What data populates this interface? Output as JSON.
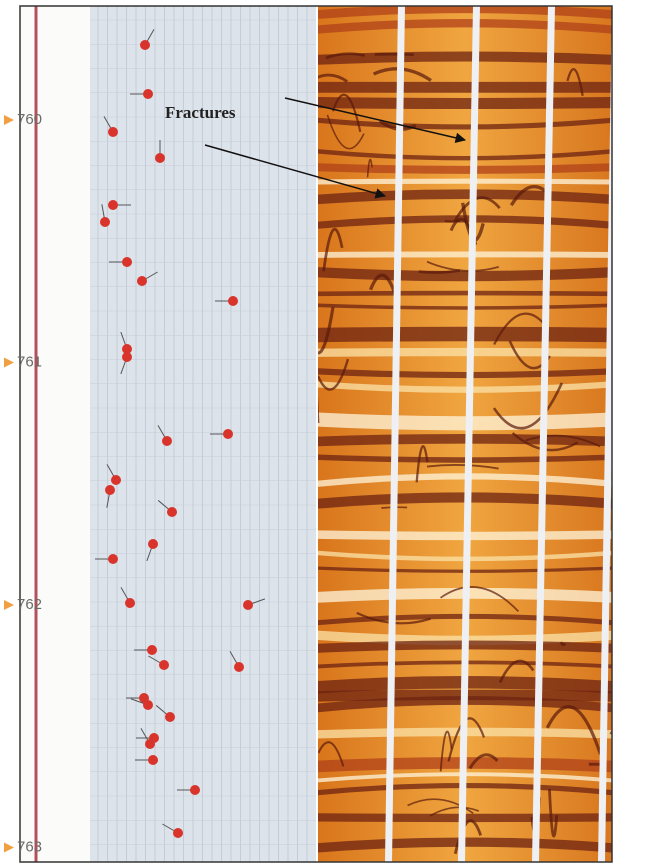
{
  "depth_track": {
    "labels": [
      "760",
      "761",
      "762",
      "763"
    ]
  },
  "annotation": {
    "text": "Fractures"
  }
}
